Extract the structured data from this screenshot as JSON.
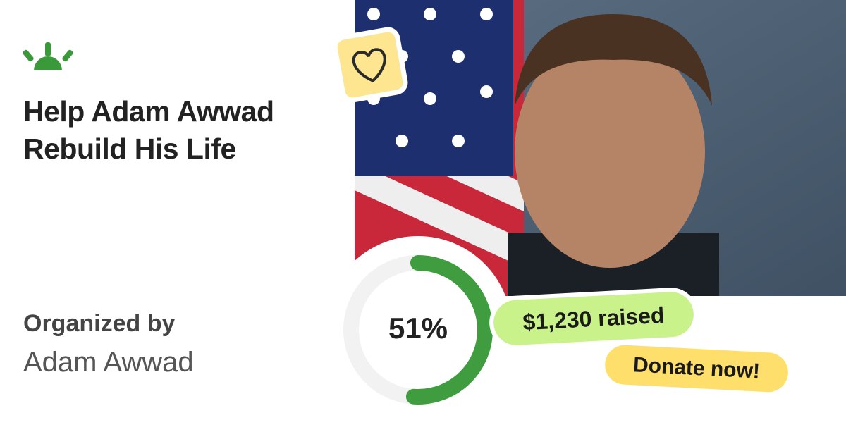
{
  "header": {
    "title": "Help Adam Awwad Rebuild His Life"
  },
  "organizer": {
    "label": "Organized by",
    "name": "Adam Awwad"
  },
  "progress": {
    "percent": 51,
    "label": "51%"
  },
  "raised": "$1,230 raised",
  "cta": "Donate now!"
}
